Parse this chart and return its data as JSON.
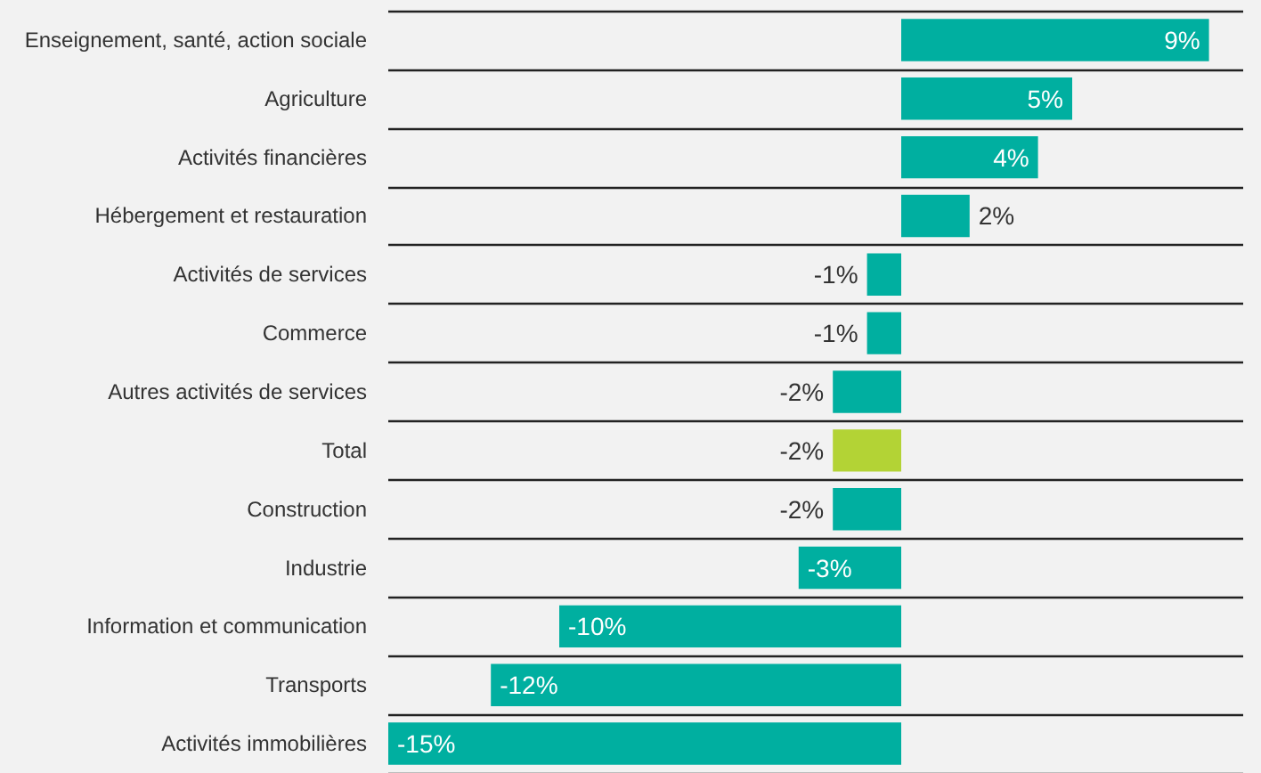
{
  "chart_data": {
    "type": "bar",
    "orientation": "horizontal",
    "categories": [
      "Enseignement, santé, action sociale",
      "Agriculture",
      "Activités financières",
      "Hébergement et restauration",
      "Activités de services",
      "Commerce",
      "Autres activités de services",
      "Total",
      "Construction",
      "Industrie",
      "Information et communication",
      "Transports",
      "Activités immobilières"
    ],
    "values": [
      9,
      5,
      4,
      2,
      -1,
      -1,
      -2,
      -2,
      -2,
      -3,
      -10,
      -12,
      -15
    ],
    "colors": [
      "#00afa0",
      "#00afa0",
      "#00afa0",
      "#00afa0",
      "#00afa0",
      "#00afa0",
      "#00afa0",
      "#b3d335",
      "#00afa0",
      "#00afa0",
      "#00afa0",
      "#00afa0",
      "#00afa0"
    ],
    "value_labels": [
      "9%",
      "5%",
      "4%",
      "2%",
      "-1%",
      "-1%",
      "-2%",
      "-2%",
      "-2%",
      "-3%",
      "-10%",
      "-12%",
      "-15%"
    ],
    "grid": "y"
  }
}
